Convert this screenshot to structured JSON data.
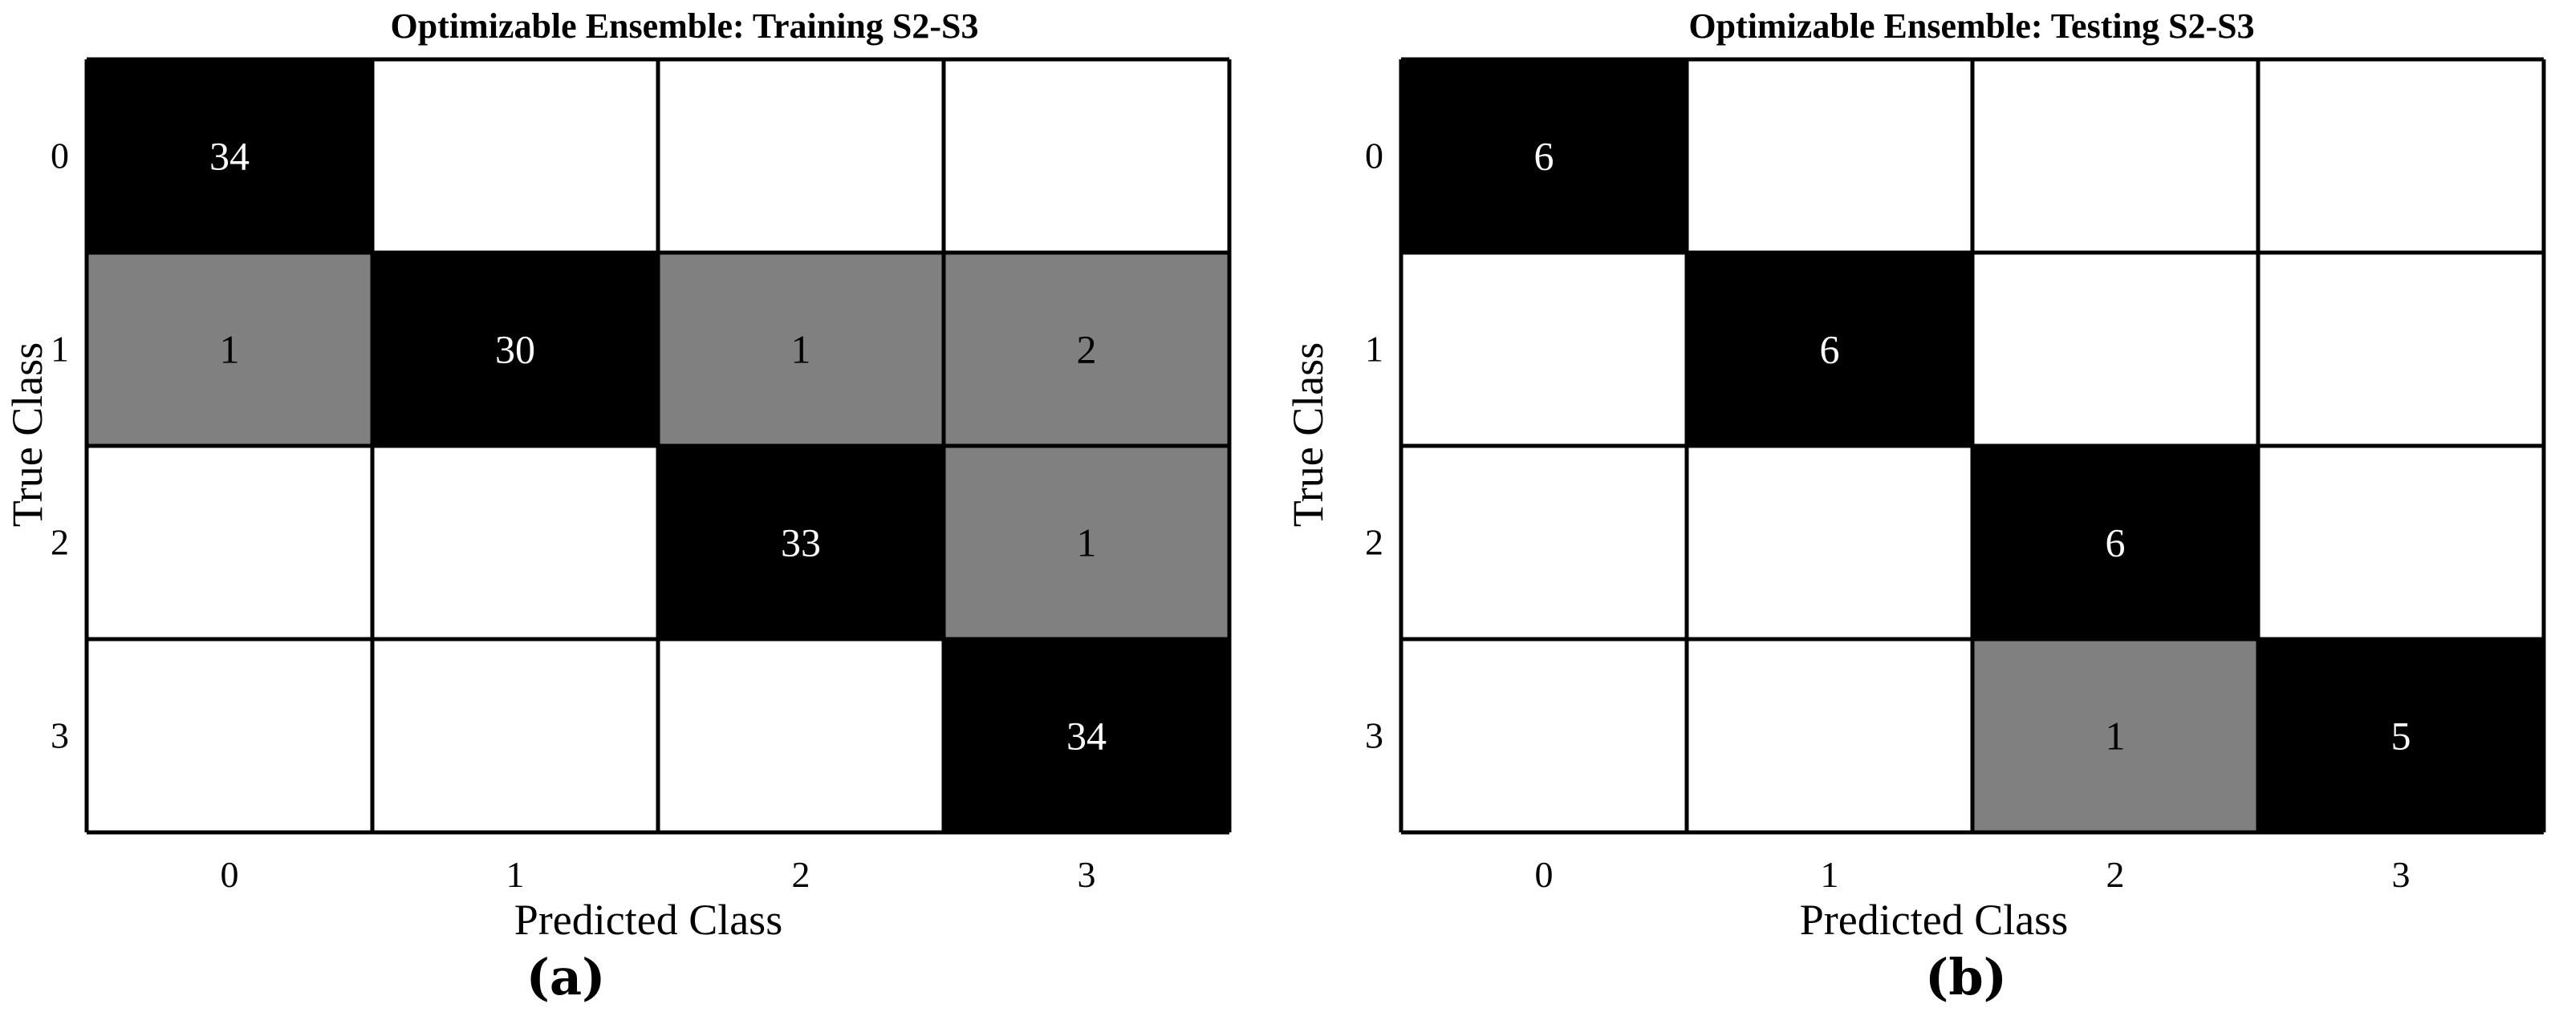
{
  "colors": {
    "diagonal": "#000000",
    "off_diagonal": "#808080",
    "empty": "#ffffff",
    "grid": "#000000"
  },
  "chart_data": [
    {
      "type": "heatmap",
      "title": "Optimizable Ensemble: Training S2-S3",
      "xlabel": "Predicted Class",
      "ylabel": "True Class",
      "x_ticks": [
        "0",
        "1",
        "2",
        "3"
      ],
      "y_ticks": [
        "0",
        "1",
        "2",
        "3"
      ],
      "panel_label": "(a)",
      "matrix": [
        [
          34,
          null,
          null,
          null
        ],
        [
          1,
          30,
          1,
          2
        ],
        [
          null,
          null,
          33,
          1
        ],
        [
          null,
          null,
          null,
          34
        ]
      ]
    },
    {
      "type": "heatmap",
      "title": "Optimizable Ensemble: Testing S2-S3",
      "xlabel": "Predicted Class",
      "ylabel": "True Class",
      "x_ticks": [
        "0",
        "1",
        "2",
        "3"
      ],
      "y_ticks": [
        "0",
        "1",
        "2",
        "3"
      ],
      "panel_label": "(b)",
      "matrix": [
        [
          6,
          null,
          null,
          null
        ],
        [
          null,
          6,
          null,
          null
        ],
        [
          null,
          null,
          6,
          null
        ],
        [
          null,
          null,
          1,
          5
        ]
      ]
    }
  ]
}
